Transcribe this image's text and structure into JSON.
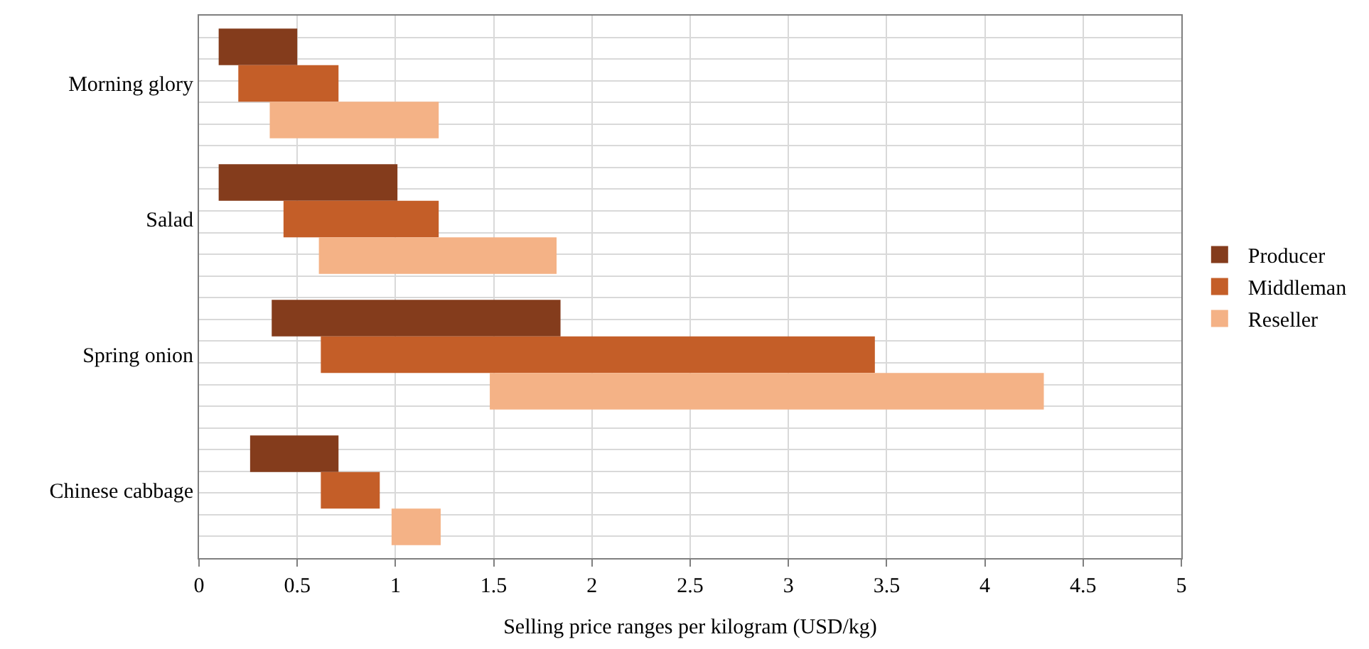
{
  "chart_data": {
    "type": "bar",
    "orientation": "horizontal",
    "xlabel": "Selling price ranges per kilogram (USD/kg)",
    "categories": [
      "Morning glory",
      "Salad",
      "Spring onion",
      "Chinese cabbage"
    ],
    "series": [
      {
        "name": "Producer",
        "color": "#843c1c",
        "base": [
          0.1,
          0.1,
          0.37,
          0.26
        ],
        "values": [
          0.4,
          0.91,
          1.47,
          0.45
        ]
      },
      {
        "name": "Middleman",
        "color": "#c45e28",
        "base": [
          0.2,
          0.43,
          0.62,
          0.62
        ],
        "values": [
          0.51,
          0.79,
          2.82,
          0.3
        ]
      },
      {
        "name": "Reseller",
        "color": "#f4b286",
        "base": [
          0.36,
          0.61,
          1.48,
          0.98
        ],
        "values": [
          0.86,
          1.21,
          2.82,
          0.25
        ]
      }
    ],
    "xlim": [
      0,
      5
    ],
    "xticks": [
      0,
      0.5,
      1,
      1.5,
      2,
      2.5,
      3,
      3.5,
      4,
      4.5,
      5
    ],
    "grid": true,
    "legend": "right"
  }
}
